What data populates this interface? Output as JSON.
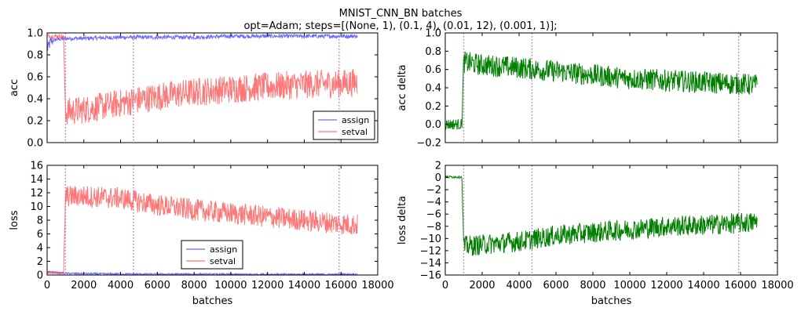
{
  "figure": {
    "title_line1": "MNIST_CNN_BN batches",
    "title_line2": "opt=Adam; steps=[(None, 1), (0.1, 4), (0.01, 12), (0.001, 1)];"
  },
  "colors": {
    "assign": "#4444ff",
    "setval": "#ff5555",
    "delta": "#007f00",
    "vline": "#bb66bb"
  },
  "chart_data": [
    {
      "type": "line",
      "id": "acc",
      "ylabel": "acc",
      "xlabel": "",
      "xlim": [
        0,
        18000
      ],
      "ylim": [
        0,
        1.0
      ],
      "xticks": [],
      "yticks": [
        "0.0",
        "0.2",
        "0.4",
        "0.6",
        "0.8",
        "1.0"
      ],
      "vlines": [
        1000,
        4700,
        15900
      ],
      "legend": {
        "placement": "lower-right",
        "entries": [
          "assign",
          "setval"
        ]
      },
      "series": [
        {
          "name": "assign",
          "x": [
            0,
            200,
            500,
            1000,
            2000,
            4000,
            6000,
            8000,
            10000,
            12000,
            14000,
            16000,
            16900
          ],
          "values": [
            0.85,
            0.92,
            0.94,
            0.95,
            0.95,
            0.96,
            0.96,
            0.96,
            0.97,
            0.97,
            0.97,
            0.97,
            0.97
          ]
        },
        {
          "name": "setval",
          "x": [
            0,
            900,
            1000,
            2000,
            4000,
            6000,
            8000,
            10000,
            12000,
            14000,
            16000,
            16900
          ],
          "values": [
            0.97,
            0.97,
            0.28,
            0.3,
            0.36,
            0.42,
            0.46,
            0.49,
            0.51,
            0.53,
            0.54,
            0.55
          ]
        }
      ]
    },
    {
      "type": "line",
      "id": "acc_delta",
      "ylabel": "acc delta",
      "xlabel": "",
      "xlim": [
        0,
        18000
      ],
      "ylim": [
        -0.2,
        1.0
      ],
      "xticks": [],
      "yticks": [
        "−0.2",
        "0.0",
        "0.2",
        "0.4",
        "0.6",
        "0.8",
        "1.0"
      ],
      "vlines": [
        1000,
        4700,
        15900
      ],
      "series": [
        {
          "name": "",
          "x": [
            0,
            900,
            1000,
            2000,
            4000,
            6000,
            8000,
            10000,
            12000,
            14000,
            16000,
            16900
          ],
          "values": [
            0.0,
            0.0,
            0.68,
            0.65,
            0.62,
            0.58,
            0.54,
            0.5,
            0.48,
            0.46,
            0.44,
            0.43
          ]
        }
      ]
    },
    {
      "type": "line",
      "id": "loss",
      "ylabel": "loss",
      "xlabel": "batches",
      "xlim": [
        0,
        18000
      ],
      "ylim": [
        0,
        16
      ],
      "xticks": [
        "0",
        "2000",
        "4000",
        "6000",
        "8000",
        "10000",
        "12000",
        "14000",
        "16000",
        "18000"
      ],
      "yticks": [
        "0",
        "2",
        "4",
        "6",
        "8",
        "10",
        "12",
        "14",
        "16"
      ],
      "vlines": [
        1000,
        4700,
        15900
      ],
      "legend": {
        "placement": "lower-center",
        "entries": [
          "assign",
          "setval"
        ]
      },
      "series": [
        {
          "name": "assign",
          "x": [
            0,
            500,
            1000,
            2000,
            4000,
            8000,
            12000,
            16000,
            16900
          ],
          "values": [
            0.5,
            0.35,
            0.25,
            0.2,
            0.15,
            0.12,
            0.1,
            0.1,
            0.1
          ]
        },
        {
          "name": "setval",
          "x": [
            0,
            900,
            1000,
            2000,
            4000,
            6000,
            8000,
            10000,
            12000,
            14000,
            16000,
            16900
          ],
          "values": [
            0.3,
            0.3,
            11.5,
            11.5,
            11.2,
            10.2,
            9.5,
            9.0,
            8.5,
            8.0,
            7.5,
            7.3
          ]
        }
      ]
    },
    {
      "type": "line",
      "id": "loss_delta",
      "ylabel": "loss delta",
      "xlabel": "batches",
      "xlim": [
        0,
        18000
      ],
      "ylim": [
        -16,
        2
      ],
      "xticks": [
        "0",
        "2000",
        "4000",
        "6000",
        "8000",
        "10000",
        "12000",
        "14000",
        "16000",
        "18000"
      ],
      "yticks": [
        "−16",
        "−14",
        "−12",
        "−10",
        "−8",
        "−6",
        "−4",
        "−2",
        "0",
        "2"
      ],
      "vlines": [
        1000,
        4700,
        15900
      ],
      "series": [
        {
          "name": "",
          "x": [
            0,
            900,
            1000,
            2000,
            4000,
            6000,
            8000,
            10000,
            12000,
            14000,
            16000,
            16900
          ],
          "values": [
            0.1,
            0.1,
            -11.3,
            -11.0,
            -10.5,
            -9.5,
            -9.0,
            -8.5,
            -8.0,
            -7.8,
            -7.5,
            -7.3
          ]
        }
      ]
    }
  ]
}
